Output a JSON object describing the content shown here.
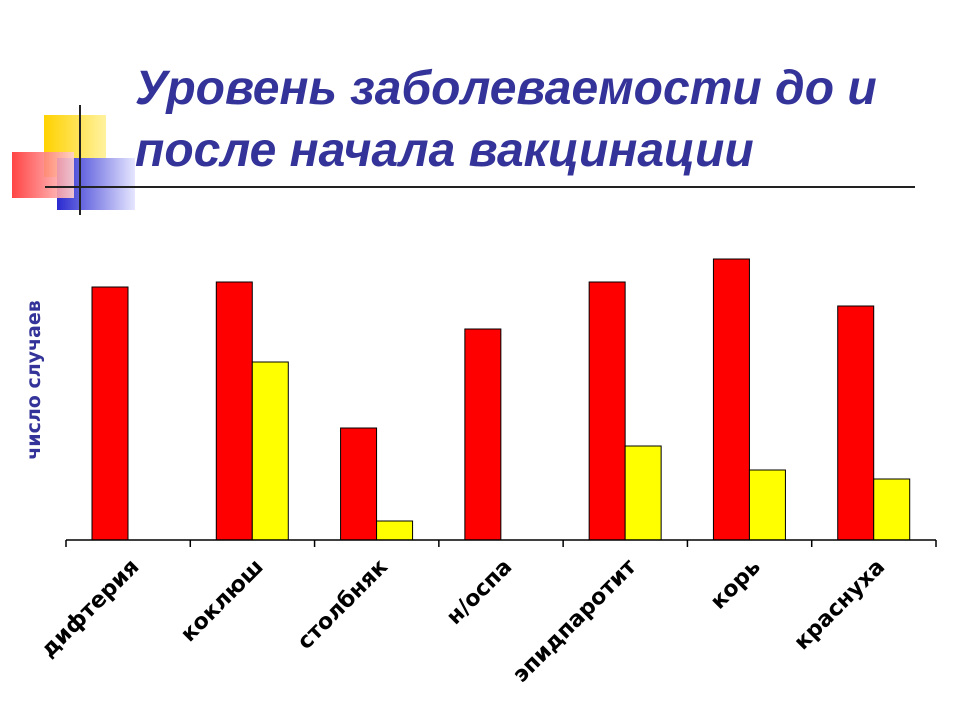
{
  "chart_data": {
    "type": "bar",
    "title": "Уровень заболеваемости до и после начала вакцинации",
    "y_label": "число случаев",
    "categories": [
      "дифтерия",
      "коклюш",
      "столбняк",
      "н/оспа",
      "эпидпаротит",
      "корь",
      "краснуха"
    ],
    "series": [
      {
        "color": "#ff0000",
        "values": [
          253,
          258,
          112,
          211,
          258,
          281,
          234
        ]
      },
      {
        "color": "#ffff00",
        "values": [
          0,
          178,
          19,
          0,
          94,
          70,
          61
        ]
      }
    ],
    "ylim": [
      0,
      300
    ]
  }
}
